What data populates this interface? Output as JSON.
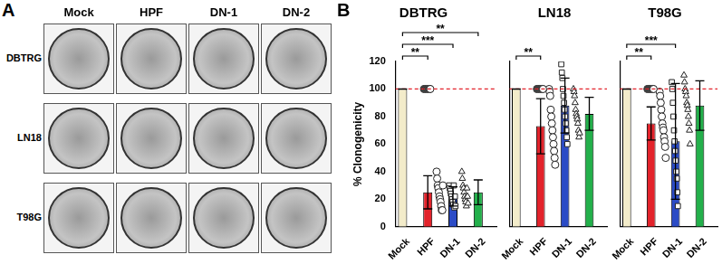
{
  "panel_labels": [
    "A",
    "B"
  ],
  "plates": {
    "columns": [
      "Mock",
      "HPF",
      "DN-1",
      "DN-2"
    ],
    "rows": [
      "DBTRG",
      "LN18",
      "T98G"
    ]
  },
  "chart_data": [
    {
      "type": "bar",
      "title": "DBTRG",
      "y_label": "% Clonogenicity",
      "categories": [
        "Mock",
        "HPF",
        "DN-1",
        "DN-2"
      ],
      "values": [
        100,
        25,
        22,
        25
      ],
      "errors": [
        0,
        12,
        7,
        9
      ],
      "colors": [
        "#f3ecca",
        "#e3232b",
        "#2b4bc6",
        "#23b04b"
      ],
      "marker": [
        "circle",
        "circle",
        "square",
        "triangle"
      ],
      "points": [
        [
          100,
          100,
          100,
          100,
          100,
          100,
          100,
          100,
          100,
          100,
          100,
          100
        ],
        [
          40,
          35,
          30,
          28,
          25,
          22,
          20,
          18,
          15,
          12,
          12,
          30
        ],
        [
          30,
          28,
          26,
          24,
          22,
          20,
          18,
          16,
          30,
          14,
          22,
          15
        ],
        [
          40,
          35,
          30,
          28,
          25,
          22,
          20,
          18,
          15,
          28,
          22,
          17
        ]
      ],
      "reference_line": 100,
      "annotations": [
        {
          "from": "Mock",
          "to": "HPF",
          "label": "**"
        },
        {
          "from": "Mock",
          "to": "DN-1",
          "label": "***"
        },
        {
          "from": "Mock",
          "to": "DN-2",
          "label": "**"
        }
      ],
      "ylim": [
        0,
        120
      ],
      "yticks": [
        0,
        20,
        40,
        60,
        80,
        100,
        120
      ],
      "grid": false
    },
    {
      "type": "bar",
      "title": "LN18",
      "categories": [
        "Mock",
        "HPF",
        "DN-1",
        "DN-2"
      ],
      "values": [
        100,
        73,
        88,
        82
      ],
      "errors": [
        0,
        20,
        20,
        12
      ],
      "colors": [
        "#f3ecca",
        "#e3232b",
        "#2b4bc6",
        "#23b04b"
      ],
      "marker": [
        "circle",
        "circle",
        "square",
        "triangle"
      ],
      "points": [
        [
          100,
          100,
          100,
          100,
          100,
          100,
          100,
          100,
          100,
          100,
          100,
          100
        ],
        [
          100,
          98,
          95,
          85,
          80,
          75,
          70,
          65,
          60,
          55,
          50,
          45
        ],
        [
          118,
          112,
          108,
          100,
          95,
          90,
          85,
          80,
          75,
          70,
          65,
          60
        ],
        [
          100,
          98,
          95,
          90,
          85,
          82,
          80,
          78,
          75,
          70,
          65,
          68
        ]
      ],
      "reference_line": 100,
      "annotations": [
        {
          "from": "Mock",
          "to": "HPF",
          "label": "**"
        }
      ],
      "ylim": [
        0,
        120
      ],
      "yticks": [
        0,
        20,
        40,
        60,
        80,
        100,
        120
      ],
      "grid": false,
      "tick_labels": "x"
    },
    {
      "type": "bar",
      "title": "T98G",
      "categories": [
        "Mock",
        "HPF",
        "DN-1",
        "DN-2"
      ],
      "values": [
        100,
        75,
        62,
        88
      ],
      "errors": [
        0,
        12,
        42,
        18
      ],
      "colors": [
        "#f3ecca",
        "#e3232b",
        "#2b4bc6",
        "#23b04b"
      ],
      "marker": [
        "circle",
        "circle",
        "square",
        "triangle"
      ],
      "points": [
        [
          100,
          100,
          100,
          100,
          100,
          100,
          100,
          100,
          100,
          100,
          100,
          100
        ],
        [
          98,
          95,
          90,
          85,
          80,
          75,
          72,
          70,
          65,
          62,
          58,
          50
        ],
        [
          105,
          100,
          90,
          80,
          70,
          62,
          55,
          48,
          40,
          35,
          25,
          15
        ],
        [
          110,
          105,
          100,
          98,
          95,
          90,
          88,
          85,
          80,
          75,
          70,
          60
        ]
      ],
      "reference_line": 100,
      "annotations": [
        {
          "from": "Mock",
          "to": "HPF",
          "label": "**"
        },
        {
          "from": "Mock",
          "to": "DN-1",
          "label": "***"
        }
      ],
      "ylim": [
        0,
        120
      ],
      "yticks": [
        0,
        20,
        40,
        60,
        80,
        100,
        120
      ],
      "grid": false,
      "tick_labels": "x"
    }
  ]
}
